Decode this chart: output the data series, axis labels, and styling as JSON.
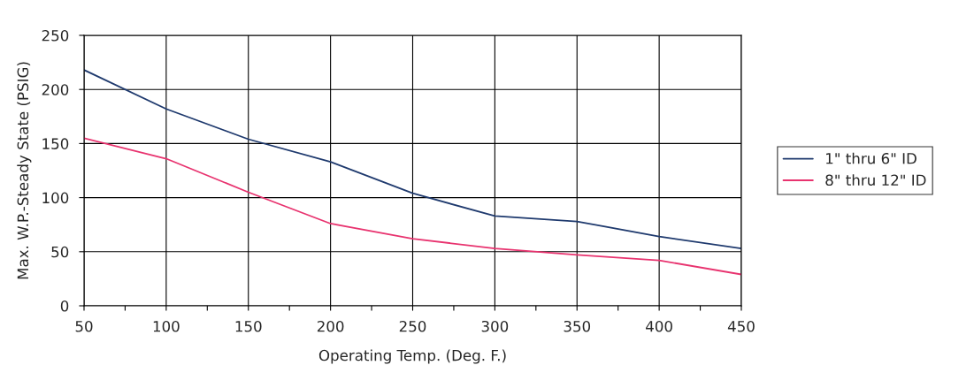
{
  "chart_data": {
    "type": "line",
    "xlabel": "Operating Temp. (Deg. F.)",
    "ylabel": "Max. W.P.-Steady State (PSIG)",
    "x": [
      50,
      100,
      150,
      200,
      250,
      300,
      350,
      400,
      450
    ],
    "series": [
      {
        "name": "1\" thru 6\" ID",
        "color": "#1f3a6e",
        "values": [
          218,
          182,
          154,
          133,
          104,
          83,
          78,
          64,
          53
        ]
      },
      {
        "name": "8\" thru 12\" ID",
        "color": "#e8336f",
        "values": [
          155,
          136,
          105,
          76,
          62,
          53,
          47,
          42,
          29
        ]
      }
    ],
    "xlim": [
      50,
      450
    ],
    "ylim": [
      0,
      250
    ],
    "xticks": [
      50,
      {
        "value": 75,
        "label": null
      },
      100,
      {
        "value": 125,
        "label": null
      },
      150,
      {
        "value": 175,
        "label": null
      },
      200,
      {
        "value": 225,
        "label": null
      },
      250,
      {
        "value": 275,
        "label": null
      },
      300,
      {
        "value": 325,
        "label": null
      },
      350,
      {
        "value": 375,
        "label": null
      },
      400,
      {
        "value": 425,
        "label": null
      },
      450
    ],
    "yticks": [
      0,
      50,
      100,
      150,
      200,
      250
    ],
    "grid": true,
    "legend": "right",
    "marker": "none",
    "line_style": "solid"
  }
}
